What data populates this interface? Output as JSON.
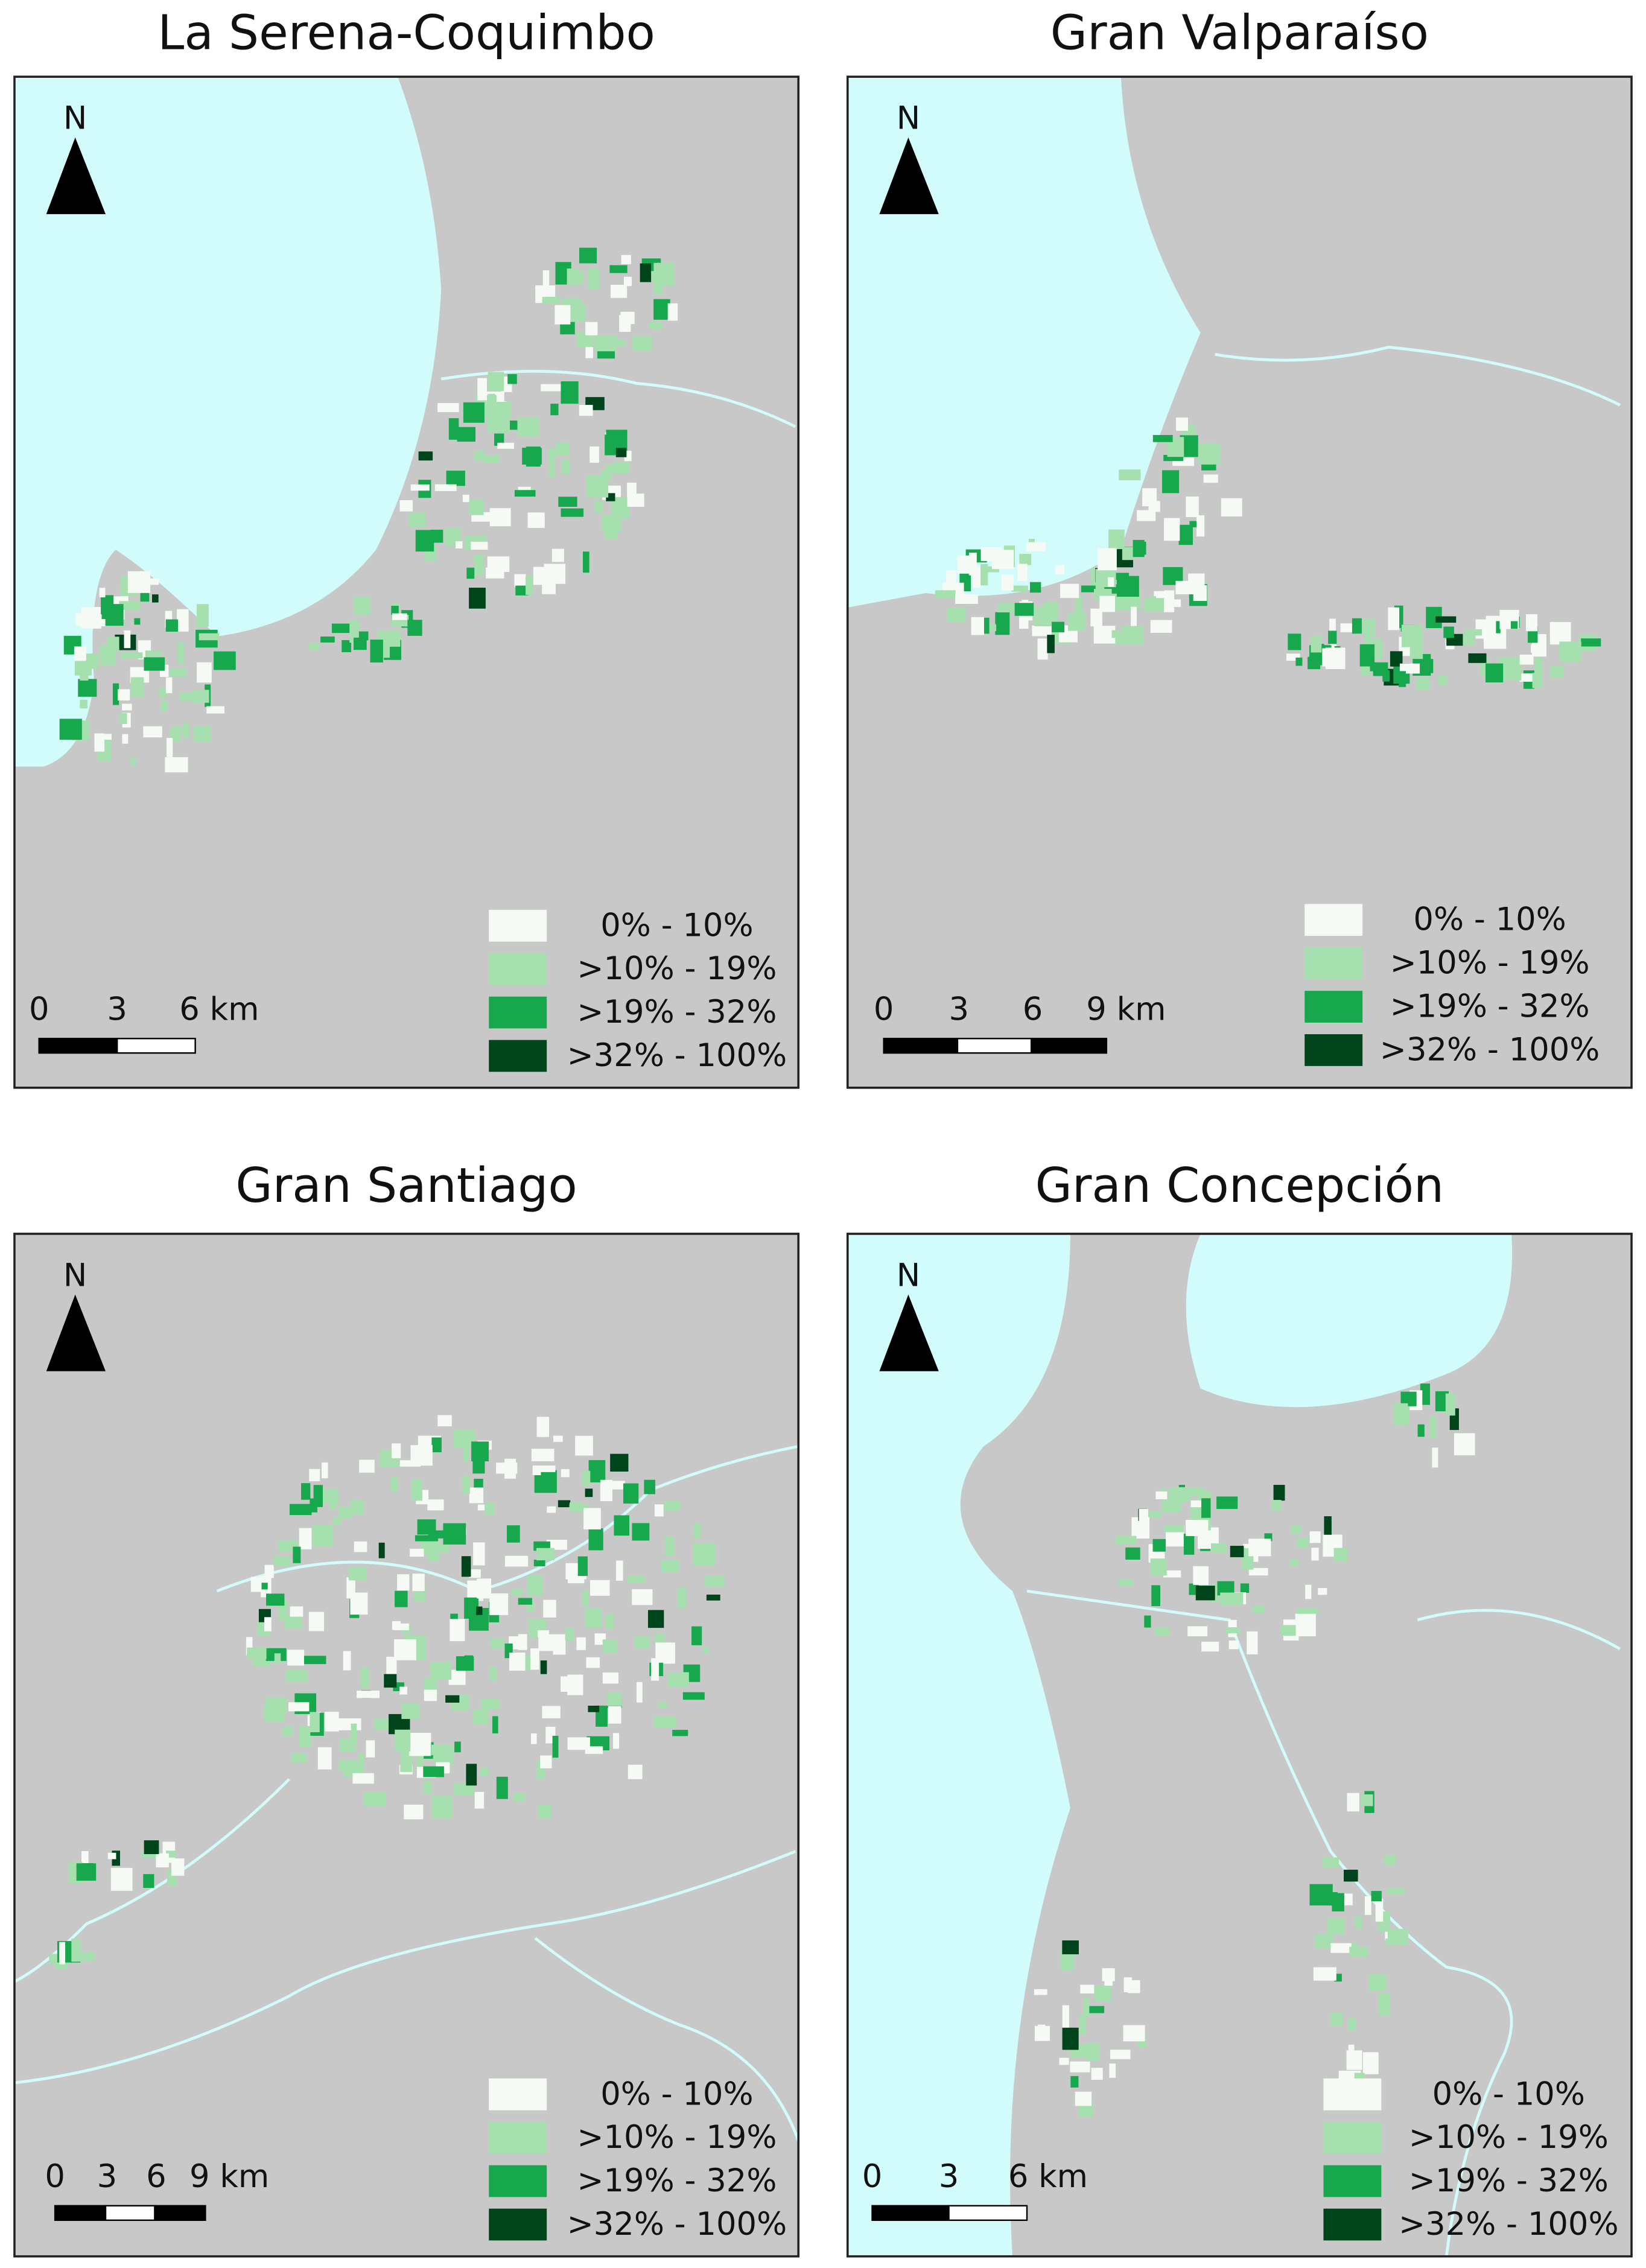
{
  "panels": [
    {
      "title": "La Serena-Coquimbo",
      "north": "N",
      "scale_labels": [
        "0",
        "3",
        "6 km"
      ],
      "legend": [
        {
          "label": "0% - 10%",
          "color": "#f5fbf4"
        },
        {
          "label": ">10% - 19%",
          "color": "#a6e0ae"
        },
        {
          "label": ">19% - 32%",
          "color": "#17a84e"
        },
        {
          "label": ">32% - 100%",
          "color": "#00441b"
        }
      ]
    },
    {
      "title": "Gran Valparaíso",
      "north": "N",
      "scale_labels": [
        "0",
        "3",
        "6",
        "9 km"
      ],
      "legend": [
        {
          "label": "0% - 10%",
          "color": "#f5fbf4"
        },
        {
          "label": ">10% - 19%",
          "color": "#a6e0ae"
        },
        {
          "label": ">19% - 32%",
          "color": "#17a84e"
        },
        {
          "label": ">32% - 100%",
          "color": "#00441b"
        }
      ]
    },
    {
      "title": "Gran Santiago",
      "north": "N",
      "scale_labels": [
        "0",
        "3",
        "6",
        "9 km"
      ],
      "legend": [
        {
          "label": "0% - 10%",
          "color": "#f5fbf4"
        },
        {
          "label": ">10% - 19%",
          "color": "#a6e0ae"
        },
        {
          "label": ">19% - 32%",
          "color": "#17a84e"
        },
        {
          "label": ">32% - 100%",
          "color": "#00441b"
        }
      ]
    },
    {
      "title": "Gran Concepción",
      "north": "N",
      "scale_labels": [
        "0",
        "3",
        "6 km"
      ],
      "legend": [
        {
          "label": "0% - 10%",
          "color": "#f5fbf4"
        },
        {
          "label": ">10% - 19%",
          "color": "#a6e0ae"
        },
        {
          "label": ">19% - 32%",
          "color": "#17a84e"
        },
        {
          "label": ">32% - 100%",
          "color": "#00441b"
        }
      ]
    }
  ]
}
